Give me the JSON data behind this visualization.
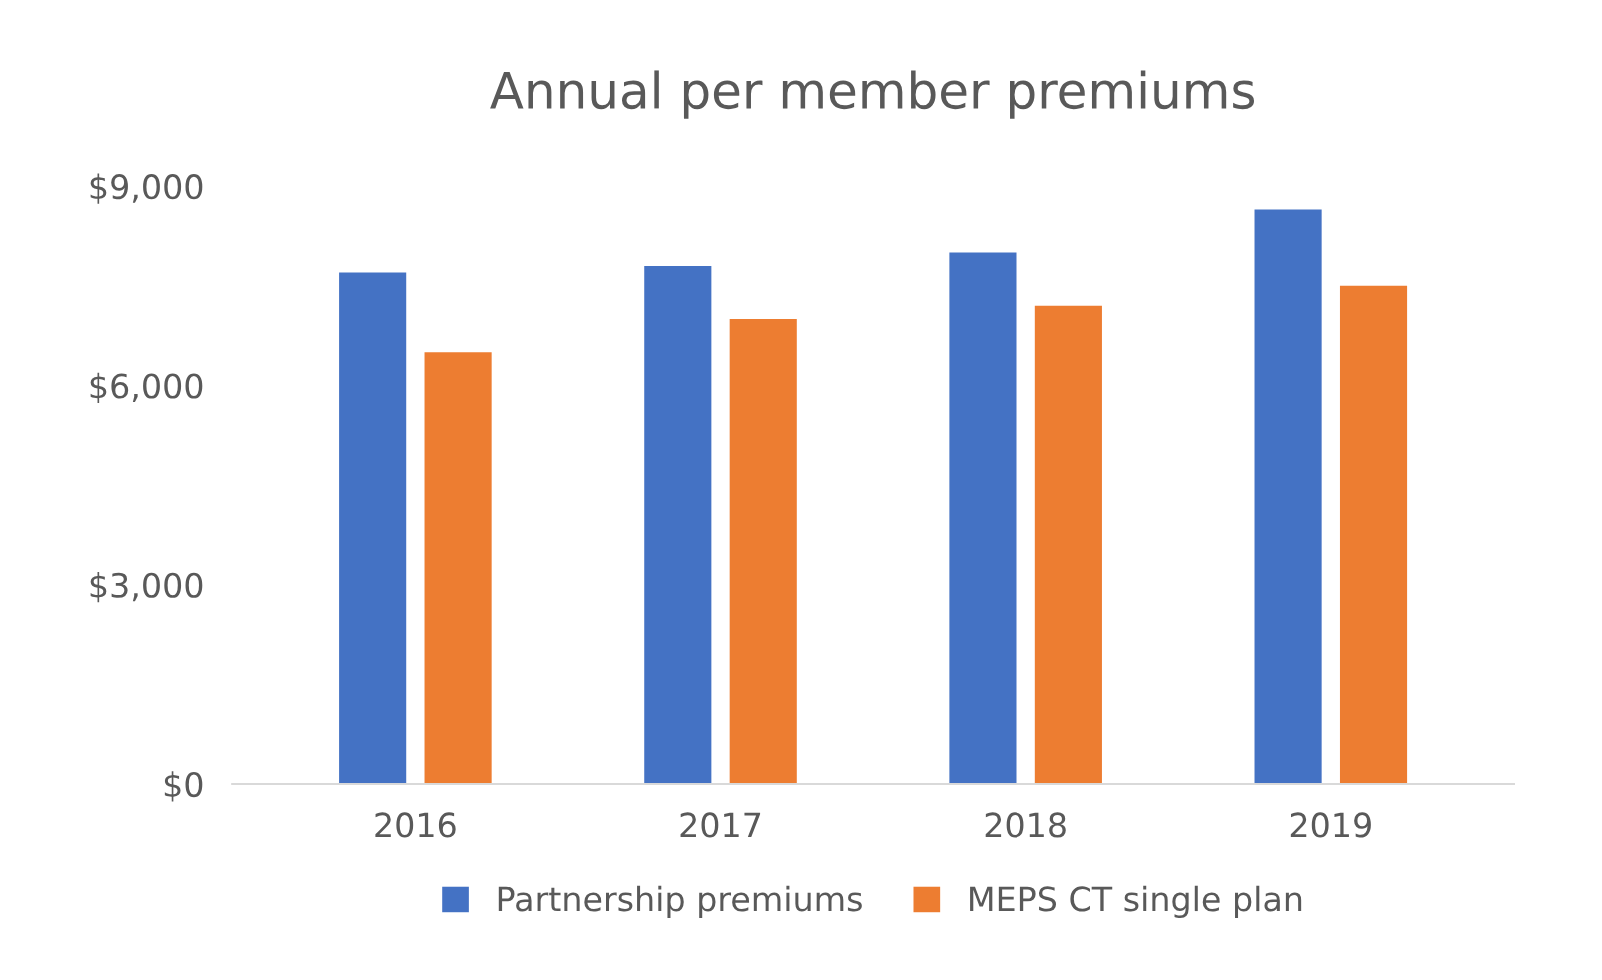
{
  "chart_data": {
    "type": "bar",
    "title": "Annual per member premiums",
    "categories": [
      "2016",
      "2017",
      "2018",
      "2019"
    ],
    "series": [
      {
        "name": "Partnership premiums",
        "color": "#4472c4",
        "values": [
          7700,
          7800,
          8000,
          8650
        ]
      },
      {
        "name": "MEPS CT single plan",
        "color": "#ed7d31",
        "values": [
          6500,
          7000,
          7200,
          7500
        ]
      }
    ],
    "ylim": [
      0,
      9000
    ],
    "yticks": [
      {
        "value": 0,
        "label": "$0"
      },
      {
        "value": 3000,
        "label": "$3,000"
      },
      {
        "value": 6000,
        "label": "$6,000"
      },
      {
        "value": 9000,
        "label": "$9,000"
      }
    ],
    "grid": false,
    "legend": "bottom"
  }
}
